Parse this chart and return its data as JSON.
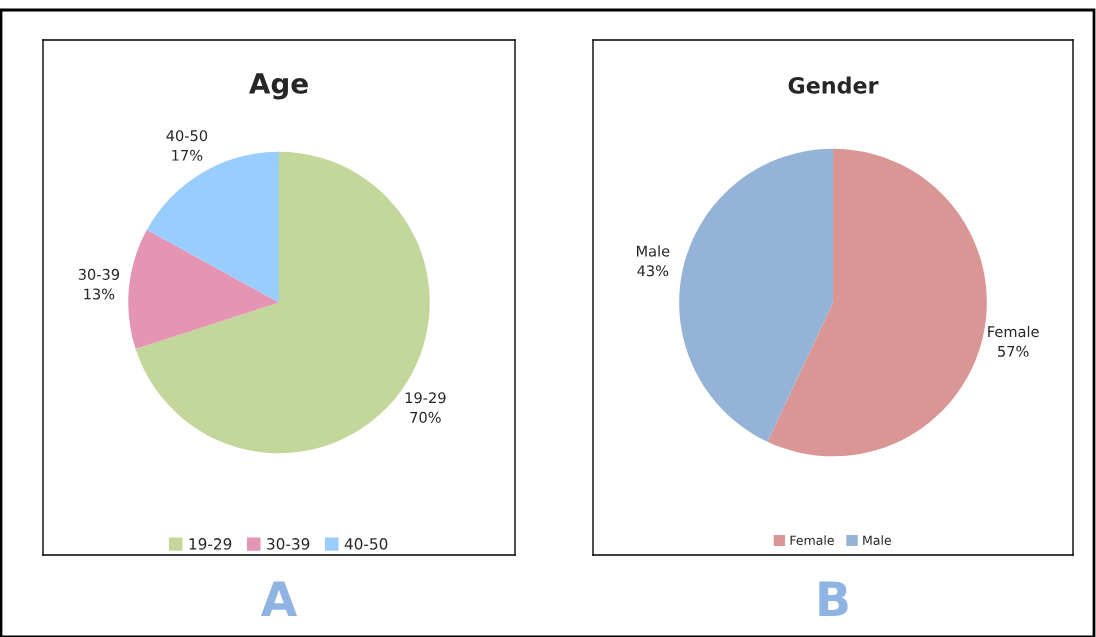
{
  "chart_data": [
    {
      "type": "pie",
      "title": "Age",
      "categories": [
        "19-29",
        "30-39",
        "40-50"
      ],
      "values": [
        70,
        13,
        17
      ],
      "colors": [
        "#c4d79b",
        "#e495b4",
        "#99ccff"
      ],
      "value_labels": [
        "70%",
        "13%",
        "17%"
      ],
      "legend": "bottom",
      "annotations": [
        "A"
      ]
    },
    {
      "type": "pie",
      "title": "Gender",
      "categories": [
        "Female",
        "Male"
      ],
      "values": [
        57,
        43
      ],
      "colors": [
        "#d99694",
        "#95b3d7"
      ],
      "value_labels": [
        "57%",
        "43%"
      ],
      "legend": "bottom",
      "annotations": [
        "B"
      ]
    }
  ]
}
